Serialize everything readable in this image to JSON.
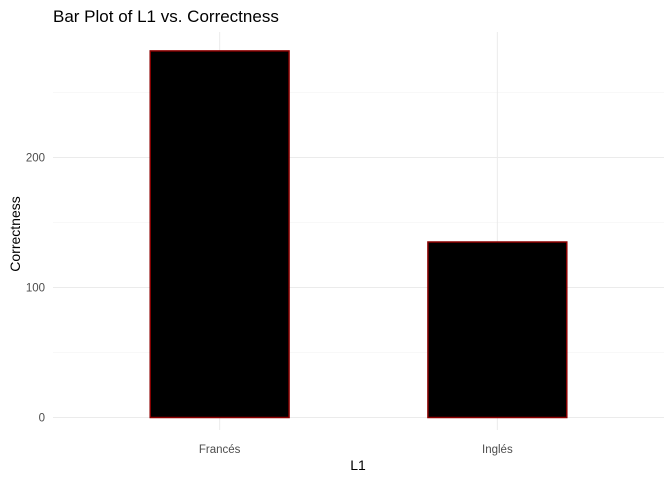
{
  "chart_data": {
    "type": "bar",
    "title": "Bar Plot of L1 vs. Correctness",
    "xlabel": "L1",
    "ylabel": "Correctness",
    "categories": [
      "Francés",
      "Inglés"
    ],
    "values": [
      282,
      135
    ],
    "ylim": [
      0,
      282
    ],
    "yticks": [
      0,
      100,
      200
    ],
    "grid": true,
    "legend": "none",
    "bar_fill": "#000000",
    "bar_outline": "#8b0000"
  }
}
